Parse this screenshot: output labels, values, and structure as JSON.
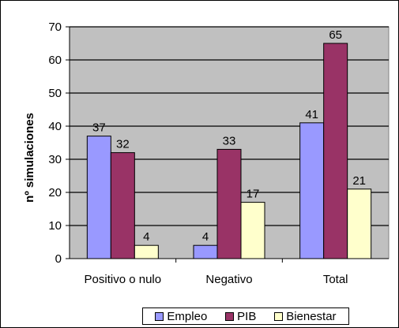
{
  "chart_data": {
    "type": "bar",
    "categories": [
      "Positivo o nulo",
      "Negativo",
      "Total"
    ],
    "series": [
      {
        "name": "Empleo",
        "values": [
          37,
          4,
          41
        ],
        "color": "#9999ff"
      },
      {
        "name": "PIB",
        "values": [
          32,
          33,
          65
        ],
        "color": "#993366"
      },
      {
        "name": "Bienestar",
        "values": [
          4,
          17,
          21
        ],
        "color": "#ffffcc"
      }
    ],
    "title": "",
    "xlabel": "",
    "ylabel": "nº simulaciones",
    "ylim": [
      0,
      70
    ],
    "yticks": [
      0,
      10,
      20,
      30,
      40,
      50,
      60,
      70
    ],
    "grid": true,
    "plot_background": "#c0c0c0",
    "legend_position": "bottom",
    "data_labels": true
  }
}
